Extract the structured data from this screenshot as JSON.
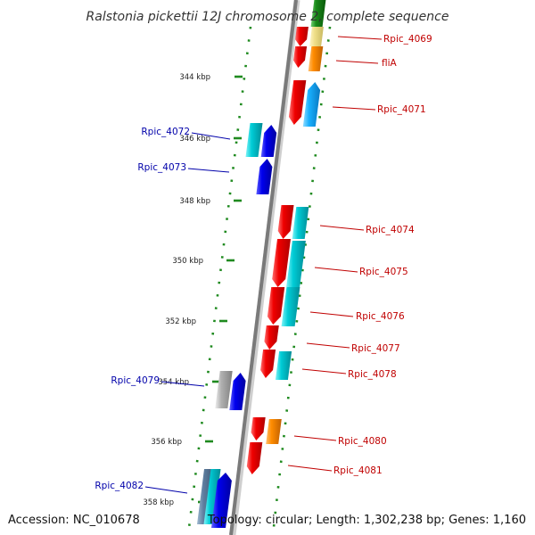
{
  "title": "Ralstonia pickettii 12J chromosome 2, complete sequence",
  "footer": {
    "accession": "Accession: NC_010678",
    "summary": "Topology: circular; Length: 1,302,238 bp; Genes: 1,160"
  },
  "scale": {
    "ticks": [
      "344 kbp",
      "346 kbp",
      "348 kbp",
      "350 kbp",
      "352 kbp",
      "354 kbp",
      "356 kbp",
      "358 kbp"
    ]
  },
  "colors": {
    "red": "#e80000",
    "blue": "#0000e0",
    "cyan": "#00c8d0",
    "sky": "#18b0ff",
    "orange": "#ff8c00",
    "yellow": "#f0e08a",
    "green": "#1a8a1a",
    "grey": "#a8a8a8",
    "steel": "#5f7fa0",
    "dots": "#1f8a1f",
    "backbone": "#7a7a7a",
    "label_right": "#c00000",
    "label_left": "#0000aa"
  },
  "genes": [
    {
      "label": "Rpic_4069",
      "side": "right"
    },
    {
      "label": "fliA",
      "side": "right"
    },
    {
      "label": "Rpic_4071",
      "side": "right"
    },
    {
      "label": "Rpic_4072",
      "side": "left"
    },
    {
      "label": "Rpic_4073",
      "side": "left"
    },
    {
      "label": "Rpic_4074",
      "side": "right"
    },
    {
      "label": "Rpic_4075",
      "side": "right"
    },
    {
      "label": "Rpic_4076",
      "side": "right"
    },
    {
      "label": "Rpic_4077",
      "side": "right"
    },
    {
      "label": "Rpic_4078",
      "side": "right"
    },
    {
      "label": "Rpic_4079",
      "side": "left"
    },
    {
      "label": "Rpic_4080",
      "side": "right"
    },
    {
      "label": "Rpic_4081",
      "side": "right"
    },
    {
      "label": "Rpic_4082",
      "side": "left"
    }
  ]
}
